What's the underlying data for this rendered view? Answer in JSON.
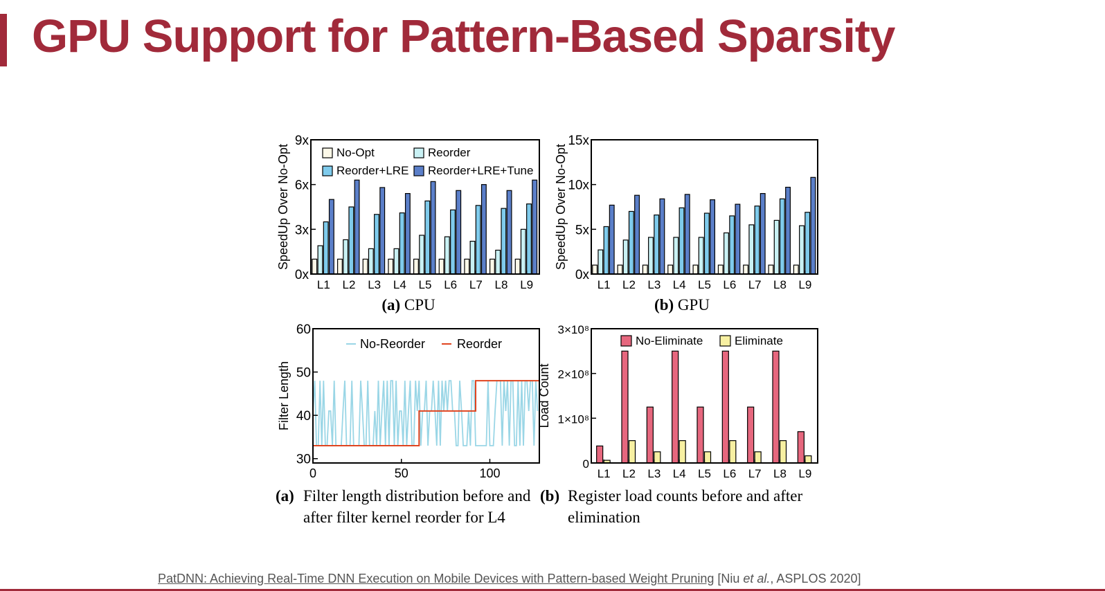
{
  "slide": {
    "title": "GPU Support for Pattern-Based Sparsity",
    "accent_color": "#a12a3a"
  },
  "captions": {
    "cpu_tag": "(a)",
    "cpu_text": "CPU",
    "gpu_tag": "(b)",
    "gpu_text": "GPU",
    "filter_tag": "(a)",
    "filter_text": "Filter length distribution before and after filter kernel reorder for L4",
    "load_tag": "(b)",
    "load_text": "Register load counts before and after elimination"
  },
  "citation": {
    "link_text": "PatDNN: Achieving Real-Time DNN Execution on Mobile Devices with Pattern-based Weight Pruning",
    "pre": " [Niu ",
    "etal": "et al.",
    "post": ", ASPLOS 2020]"
  },
  "chart_data": [
    {
      "id": "cpu",
      "type": "bar",
      "ylabel": "SpeedUp Over No-Opt",
      "categories": [
        "L1",
        "L2",
        "L3",
        "L4",
        "L5",
        "L6",
        "L7",
        "L8",
        "L9"
      ],
      "ylim": [
        0,
        9
      ],
      "yticks": [
        0,
        3,
        6,
        9
      ],
      "ytick_labels": [
        "0x",
        "3x",
        "6x",
        "9x"
      ],
      "legend_position": "top",
      "series": [
        {
          "name": "No-Opt",
          "color": "#fcf8e8",
          "values": [
            1,
            1,
            1,
            1,
            1,
            1,
            1,
            1,
            1
          ]
        },
        {
          "name": "Reorder",
          "color": "#c9f1f4",
          "values": [
            1.9,
            2.3,
            1.7,
            1.7,
            2.6,
            2.5,
            2.2,
            1.6,
            3.0
          ]
        },
        {
          "name": "Reorder+LRE",
          "color": "#7fcbec",
          "values": [
            3.5,
            4.5,
            4.0,
            4.1,
            4.9,
            4.3,
            4.6,
            4.4,
            4.7
          ]
        },
        {
          "name": "Reorder+LRE+Tune",
          "color": "#5b7fc9",
          "values": [
            5.0,
            6.3,
            5.8,
            5.4,
            6.2,
            5.6,
            6.0,
            5.6,
            6.3
          ]
        }
      ]
    },
    {
      "id": "gpu",
      "type": "bar",
      "ylabel": "SpeedUp Over No-Opt",
      "categories": [
        "L1",
        "L2",
        "L3",
        "L4",
        "L5",
        "L6",
        "L7",
        "L8",
        "L9"
      ],
      "ylim": [
        0,
        15
      ],
      "yticks": [
        0,
        5,
        10,
        15
      ],
      "ytick_labels": [
        "0x",
        "5x",
        "10x",
        "15x"
      ],
      "series": [
        {
          "name": "No-Opt",
          "color": "#fcf8e8",
          "values": [
            1,
            1,
            1,
            1,
            1,
            1,
            1,
            1,
            1
          ]
        },
        {
          "name": "Reorder",
          "color": "#c9f1f4",
          "values": [
            2.7,
            3.8,
            4.1,
            4.1,
            4.1,
            4.6,
            5.5,
            6.0,
            5.4
          ]
        },
        {
          "name": "Reorder+LRE",
          "color": "#7fcbec",
          "values": [
            5.3,
            7.0,
            6.6,
            7.4,
            6.8,
            6.5,
            7.6,
            8.4,
            6.9
          ]
        },
        {
          "name": "Reorder+LRE+Tune",
          "color": "#5b7fc9",
          "values": [
            7.7,
            8.8,
            8.4,
            8.9,
            8.3,
            7.8,
            9.0,
            9.7,
            10.8
          ]
        }
      ]
    },
    {
      "id": "filter",
      "type": "line",
      "ylabel": "Filter Length",
      "xlim": [
        0,
        128
      ],
      "ylim": [
        29,
        60
      ],
      "xticks": [
        0,
        50,
        100
      ],
      "yticks": [
        30,
        40,
        50,
        60
      ],
      "legend_position": "top",
      "series": [
        {
          "name": "No-Reorder",
          "color": "#9ad6e6",
          "values": [
            41,
            48,
            33,
            33,
            48,
            33,
            48,
            33,
            33,
            41,
            41,
            33,
            48,
            33,
            33,
            33,
            33,
            41,
            48,
            33,
            33,
            33,
            48,
            33,
            33,
            33,
            33,
            48,
            41,
            33,
            33,
            48,
            33,
            33,
            33,
            41,
            33,
            48,
            33,
            41,
            48,
            33,
            48,
            33,
            48,
            48,
            33,
            48,
            33,
            41,
            41,
            33,
            48,
            33,
            41,
            48,
            33,
            33,
            48,
            41,
            48,
            33,
            41,
            41,
            48,
            33,
            41,
            41,
            48,
            41,
            33,
            48,
            33,
            48,
            41,
            48,
            41,
            48,
            48,
            41,
            41,
            33,
            33,
            48,
            41,
            33,
            33,
            33,
            41,
            33,
            48,
            48,
            33,
            33,
            33,
            33,
            33,
            33,
            33,
            48,
            33,
            33,
            33,
            41,
            48,
            48,
            48,
            33,
            48,
            41,
            48,
            33,
            48,
            48,
            33,
            33,
            48,
            33,
            48,
            33,
            48,
            48,
            41,
            48,
            48,
            33,
            48,
            41
          ]
        },
        {
          "name": "Reorder",
          "color": "#e0441f",
          "steps": [
            {
              "from": 0,
              "to": 60,
              "value": 33
            },
            {
              "from": 60,
              "to": 92,
              "value": 41
            },
            {
              "from": 92,
              "to": 128,
              "value": 48
            }
          ]
        }
      ]
    },
    {
      "id": "load",
      "type": "bar",
      "ylabel": "Load Count",
      "categories": [
        "L1",
        "L2",
        "L3",
        "L4",
        "L5",
        "L6",
        "L7",
        "L8",
        "L9"
      ],
      "ylim": [
        0,
        300000000
      ],
      "yticks": [
        0,
        100000000,
        200000000,
        300000000
      ],
      "ytick_labels": [
        "0",
        "1×10⁸",
        "2×10⁸",
        "3×10⁸"
      ],
      "legend_position": "top",
      "series": [
        {
          "name": "No-Eliminate",
          "color": "#e6677e",
          "values": [
            38000000,
            250000000,
            125000000,
            250000000,
            125000000,
            250000000,
            125000000,
            250000000,
            70000000
          ]
        },
        {
          "name": "Eliminate",
          "color": "#f7f0a2",
          "values": [
            6000000,
            50000000,
            25000000,
            50000000,
            25000000,
            50000000,
            25000000,
            50000000,
            16000000
          ]
        }
      ]
    }
  ]
}
